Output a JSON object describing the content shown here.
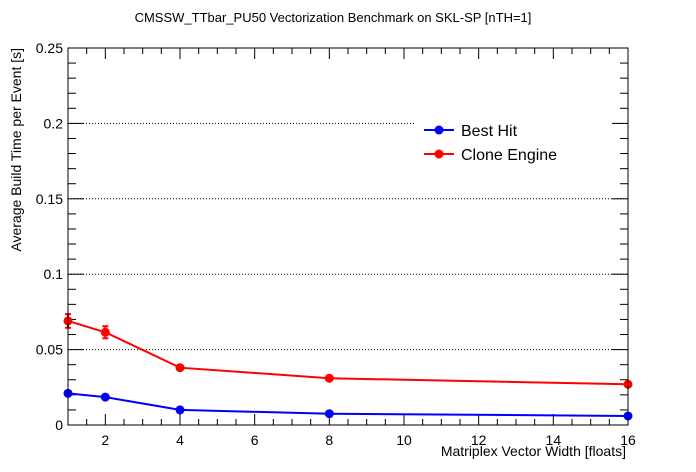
{
  "chart_data": {
    "type": "line",
    "title": "CMSSW_TTbar_PU50 Vectorization Benchmark on SKL-SP [nTH=1]",
    "xlabel": "Matriplex Vector Width [floats]",
    "ylabel": "Average Build Time per Event [s]",
    "xlim": [
      1,
      16
    ],
    "ylim": [
      0,
      0.25
    ],
    "x_ticks": [
      2,
      4,
      6,
      8,
      10,
      12,
      14,
      16
    ],
    "y_ticks": [
      0,
      0.05,
      0.1,
      0.15,
      0.2,
      0.25
    ],
    "y_tick_labels": [
      "0",
      "0.05",
      "0.1",
      "0.15",
      "0.2",
      "0.25"
    ],
    "grid": "horizontal dotted",
    "legend_position": "top-right",
    "x": [
      1,
      2,
      4,
      8,
      16
    ],
    "series": [
      {
        "name": "Best Hit",
        "color": "#0000ff",
        "values": [
          0.021,
          0.0185,
          0.01,
          0.0075,
          0.006
        ],
        "errors": [
          0.001,
          0.001,
          0.0008,
          0.0006,
          0.0005
        ]
      },
      {
        "name": "Clone Engine",
        "color": "#ff0000",
        "values": [
          0.069,
          0.0615,
          0.038,
          0.031,
          0.027
        ],
        "errors": [
          0.0045,
          0.004,
          0.0015,
          0.001,
          0.001
        ]
      }
    ]
  }
}
